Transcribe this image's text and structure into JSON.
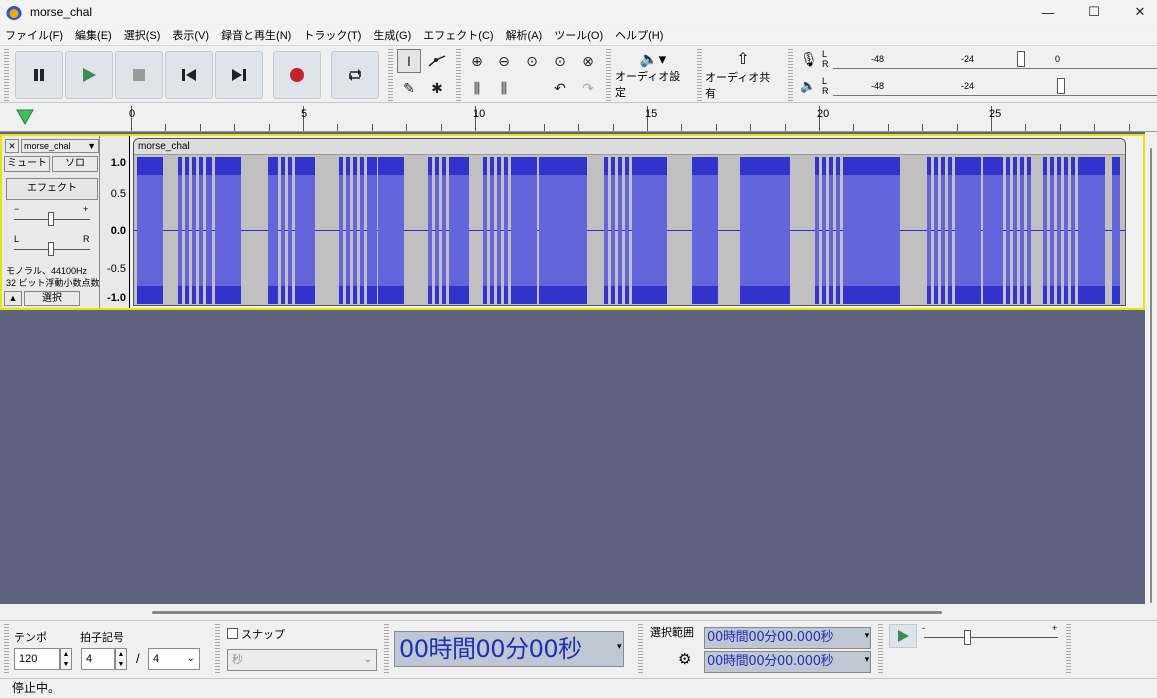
{
  "window": {
    "title": "morse_chal",
    "minimize": "—",
    "maximize": "☐",
    "close": "✕"
  },
  "menu": [
    "ファイル(F)",
    "編集(E)",
    "選択(S)",
    "表示(V)",
    "録音と再生(N)",
    "トラック(T)",
    "生成(G)",
    "エフェクト(C)",
    "解析(A)",
    "ツール(O)",
    "ヘルプ(H)"
  ],
  "transport": {
    "pause": "⏸",
    "play": "▶",
    "stop": "■",
    "skip_start": "⏮",
    "skip_end": "⏭",
    "record": "●",
    "loop": "⟳"
  },
  "toolbar": {
    "audio_setup": "オーディオ設定",
    "audio_share": "オーディオ共有",
    "speaker": "🔈"
  },
  "meters": {
    "scale": [
      "-48",
      "-24",
      "0"
    ],
    "lr": [
      "L",
      "R"
    ]
  },
  "ruler": {
    "labels": [
      "0",
      "5",
      "10",
      "15",
      "20",
      "25"
    ]
  },
  "track": {
    "name": "morse_chal",
    "clip_name": "morse_chal",
    "close": "✕",
    "mute": "ミュート",
    "solo": "ソロ",
    "effects": "エフェクト",
    "gain_minus": "−",
    "gain_plus": "+",
    "pan_l": "L",
    "pan_r": "R",
    "info1": "モノラル、44100Hz",
    "info2": "32 ビット浮動小数点数",
    "select": "選択",
    "vruler": [
      "1.0",
      "0.5",
      "0.0",
      "-0.5",
      "-1.0"
    ],
    "duration_seconds": 29
  },
  "bottom": {
    "tempo_label": "テンポ",
    "tempo": "120",
    "timesig_label": "拍子記号",
    "timesig_num": "4",
    "timesig_slash": "/",
    "timesig_den": "4",
    "snap_label": "スナップ",
    "snap_unit": "秒",
    "time": "00時間00分00秒",
    "selection_label": "選択範囲",
    "sel_start": "00時間00分00.000秒",
    "sel_end": "00時間00分00.000秒"
  },
  "status": "停止中。"
}
